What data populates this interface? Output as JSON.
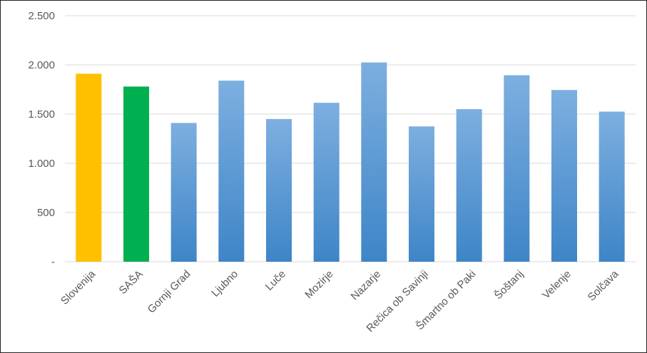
{
  "chart_data": {
    "type": "bar",
    "title": "",
    "xlabel": "",
    "ylabel": "",
    "ylim": [
      0,
      2500
    ],
    "yticks": [
      0,
      500,
      1000,
      1500,
      2000,
      2500
    ],
    "ytick_labels": [
      "-",
      "500",
      "1.000",
      "1.500",
      "2.000",
      "2.500"
    ],
    "grid": true,
    "legend": "none",
    "categories": [
      "Slovenija",
      "SAŠA",
      "Gornji Grad",
      "Ljubno",
      "Luče",
      "Mozirje",
      "Nazarje",
      "Rečica ob Savinji",
      "Šmartno ob Paki",
      "Šoštanj",
      "Velenje",
      "Solčava"
    ],
    "values": [
      1910,
      1780,
      1410,
      1840,
      1450,
      1615,
      2025,
      1375,
      1550,
      1895,
      1745,
      1525
    ],
    "colors": {
      "bar_default": "#5B9BD5",
      "bar_Slovenija": "#FFC000",
      "bar_SAŠA": "#00B050",
      "grid": "#D9D9D9",
      "text": "#595959"
    }
  }
}
